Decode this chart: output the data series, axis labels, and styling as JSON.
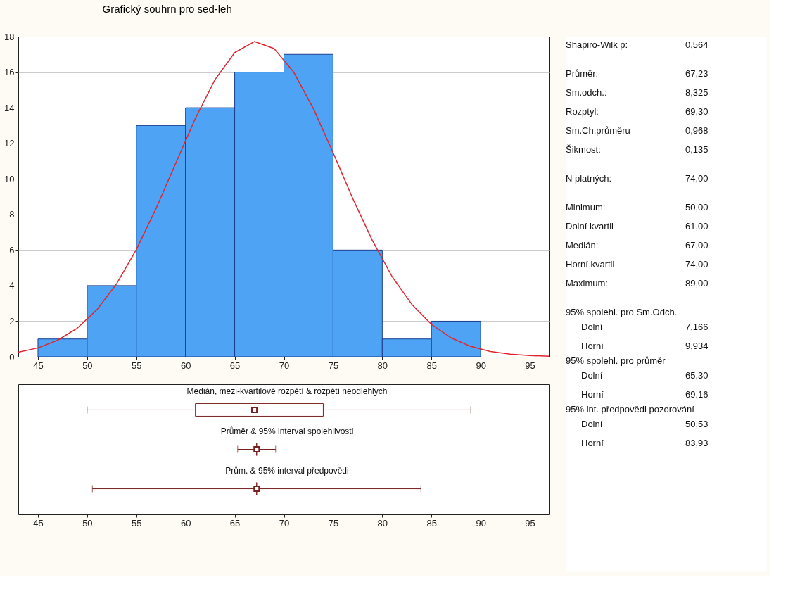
{
  "chart_data": [
    {
      "type": "histogram",
      "title": "Grafický souhrn pro sed-leh",
      "bins": [
        45,
        50,
        55,
        60,
        65,
        70,
        75,
        80,
        85,
        90
      ],
      "values": [
        1,
        4,
        13,
        14,
        16,
        17,
        6,
        1,
        2
      ],
      "color": "#4fa3f5",
      "series": [
        {
          "type": "line",
          "color": "#e0252f",
          "x": [
            43,
            45,
            47,
            49,
            51,
            53,
            55,
            57,
            59,
            61,
            63,
            65,
            67,
            69,
            71,
            73,
            75,
            77,
            79,
            81,
            83,
            85,
            87,
            89,
            91,
            93,
            95,
            97
          ],
          "values": [
            0.26,
            0.5,
            0.93,
            1.61,
            2.65,
            4.11,
            6.03,
            8.33,
            10.87,
            13.4,
            15.58,
            17.1,
            17.72,
            17.33,
            16.0,
            13.95,
            11.47,
            8.9,
            6.53,
            4.51,
            2.95,
            1.82,
            1.06,
            0.58,
            0.3,
            0.15,
            0.07,
            0.03
          ]
        }
      ],
      "xlim": [
        43,
        97
      ],
      "xticks": [
        45,
        50,
        55,
        60,
        65,
        70,
        75,
        80,
        85,
        90,
        95
      ],
      "ylim": [
        0,
        18
      ],
      "yticks": [
        0,
        2,
        4,
        6,
        8,
        10,
        12,
        14,
        16,
        18
      ],
      "grid": "y"
    },
    {
      "type": "box",
      "color": "#7a1f1f",
      "orientation": "horizontal",
      "categories": [
        "Medián, mezi-kvartilové rozpětí & rozpětí neodlehlých",
        "Průměr & 95% interval spolehlivosti",
        "Prům. & 95% interval předpovědi"
      ],
      "boxes": [
        {
          "low": 50,
          "q1": 61,
          "median": 67,
          "q3": 74,
          "high": 89
        },
        {
          "low": 65.3,
          "q1": 67.23,
          "median": 67.23,
          "q3": 67.23,
          "high": 69.16
        },
        {
          "low": 50.53,
          "q1": 67.23,
          "median": 67.23,
          "q3": 67.23,
          "high": 83.93
        }
      ],
      "xlim": [
        43,
        97
      ],
      "xticks": [
        45,
        50,
        55,
        60,
        65,
        70,
        75,
        80,
        85,
        90,
        95
      ]
    },
    {
      "type": "other",
      "annotations": [
        "Shapiro-Wilk p:",
        "0,564",
        "Průměr:",
        "67,23",
        "Sm.odch.:",
        "8,325",
        "Rozptyl:",
        "69,30",
        "Sm.Ch.průměru",
        "0,968",
        "Šikmost:",
        "0,135",
        "N platných:",
        "74,00",
        "Minimum:",
        "50,00",
        "Dolní kvartil",
        "61,00",
        "Medián:",
        "67,00",
        "Horní kvartil",
        "74,00",
        "Maximum:",
        "89,00",
        "95% spolehl. pro Sm.Odch.",
        "Dolní",
        "7,166",
        "Horní",
        "9,934",
        "95% spolehl. pro průměr",
        "Dolní",
        "65,30",
        "Horní",
        "69,16",
        "95% int. předpovědi pozorování",
        "Dolní",
        "50,53",
        "Horní",
        "83,93"
      ]
    }
  ]
}
